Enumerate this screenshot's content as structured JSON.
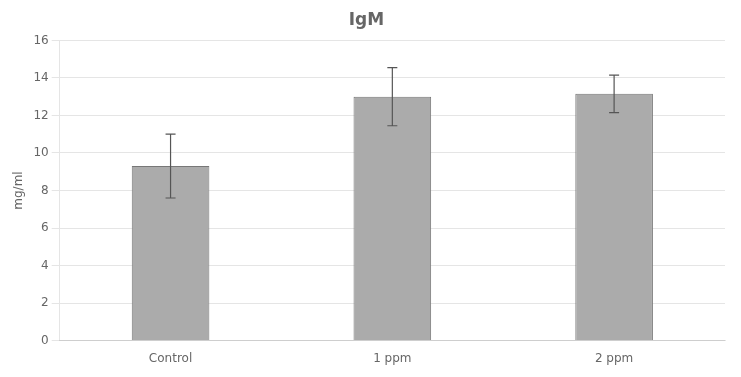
{
  "chart_data": {
    "type": "bar",
    "title": "IgM",
    "ylabel": "mg/ml",
    "categories": [
      "Control",
      "1 ppm",
      "2 ppm"
    ],
    "values": [
      9.3,
      13.0,
      13.15
    ],
    "errors": [
      1.7,
      1.55,
      1.0
    ],
    "color": "#ababab",
    "ylim": [
      0,
      16
    ],
    "yticks": [
      0,
      2,
      4,
      6,
      8,
      10,
      12,
      14,
      16
    ],
    "grid": true
  }
}
